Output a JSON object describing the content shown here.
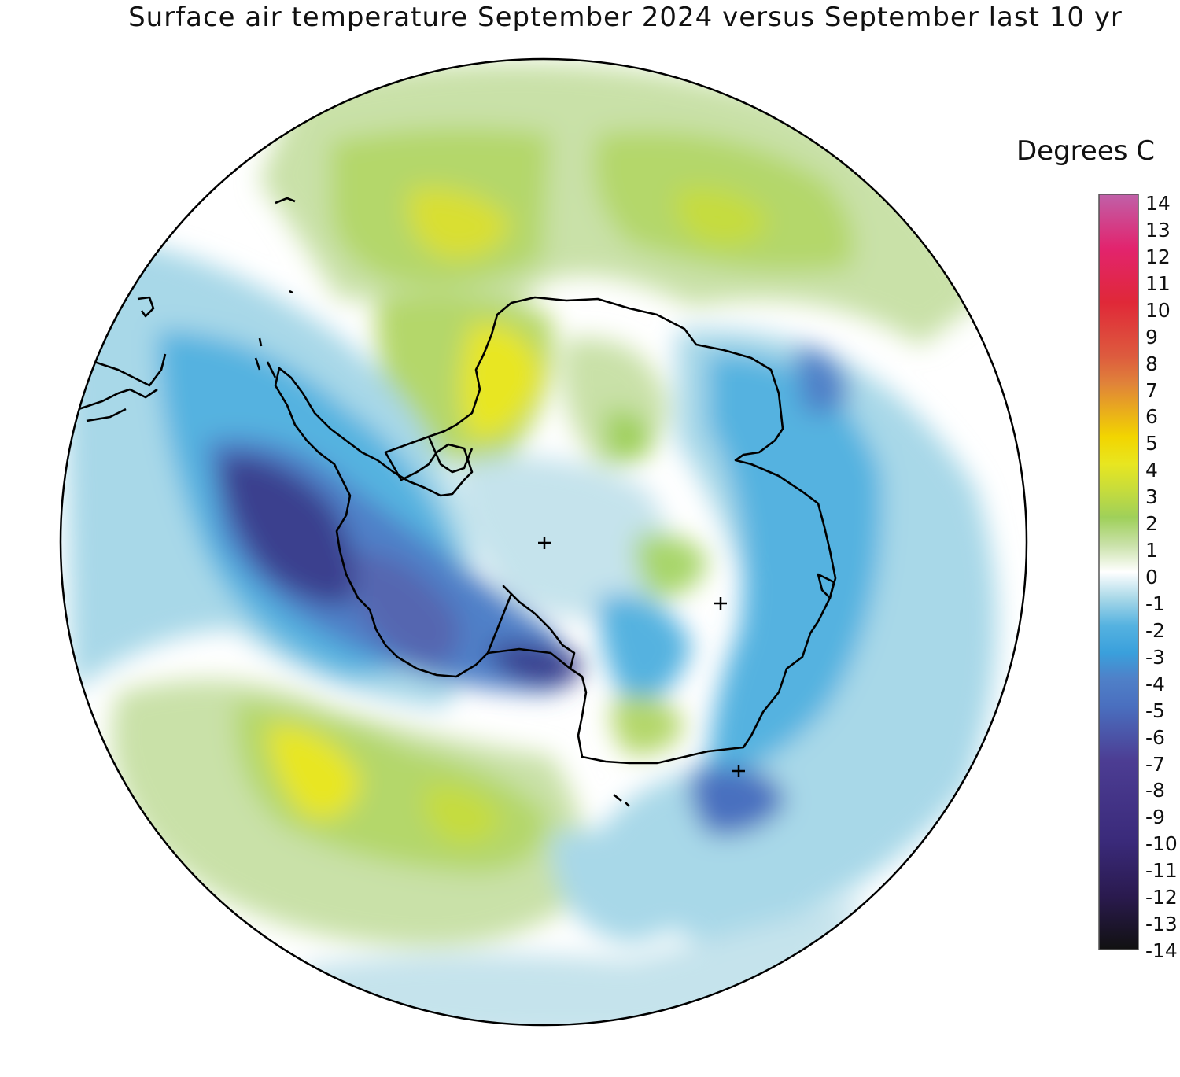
{
  "title": "Surface air temperature September 2024 versus September last 10 yr",
  "legend": {
    "units": "Degrees C",
    "ticks": [
      "14",
      "13",
      "12",
      "11",
      "10",
      "9",
      "8",
      "7",
      "6",
      "5",
      "4",
      "3",
      "2",
      "1",
      "0",
      "-1",
      "-2",
      "-3",
      "-4",
      "-5",
      "-6",
      "-7",
      "-8",
      "-9",
      "-10",
      "-11",
      "-12",
      "-13",
      "-14"
    ],
    "range": [
      -14,
      14
    ],
    "colors": {
      "-14": "#111111",
      "-12": "#2a1a4e",
      "-10": "#3a2a7a",
      "-8": "#4c3d93",
      "-6": "#3a4fa0",
      "-5": "#4a6fbf",
      "-4": "#4f80c8",
      "-3": "#3aa0dc",
      "-2": "#55b2e0",
      "-1": "#a8d8e8",
      "0": "#ffffff",
      "1": "#c9e1a8",
      "2": "#9fd05a",
      "3": "#c6dc3c",
      "4": "#e8e620",
      "5": "#f2d500",
      "6": "#e9a830",
      "7": "#e0823a",
      "8": "#dd5b3e",
      "10": "#e03030",
      "12": "#e2246e",
      "14": "#c060a8"
    }
  },
  "map": {
    "projection": "south polar stereographic",
    "features": [
      "antarctica-coastline",
      "southern-south-america-coastline",
      "pole-marker",
      "grid-crosses"
    ]
  }
}
